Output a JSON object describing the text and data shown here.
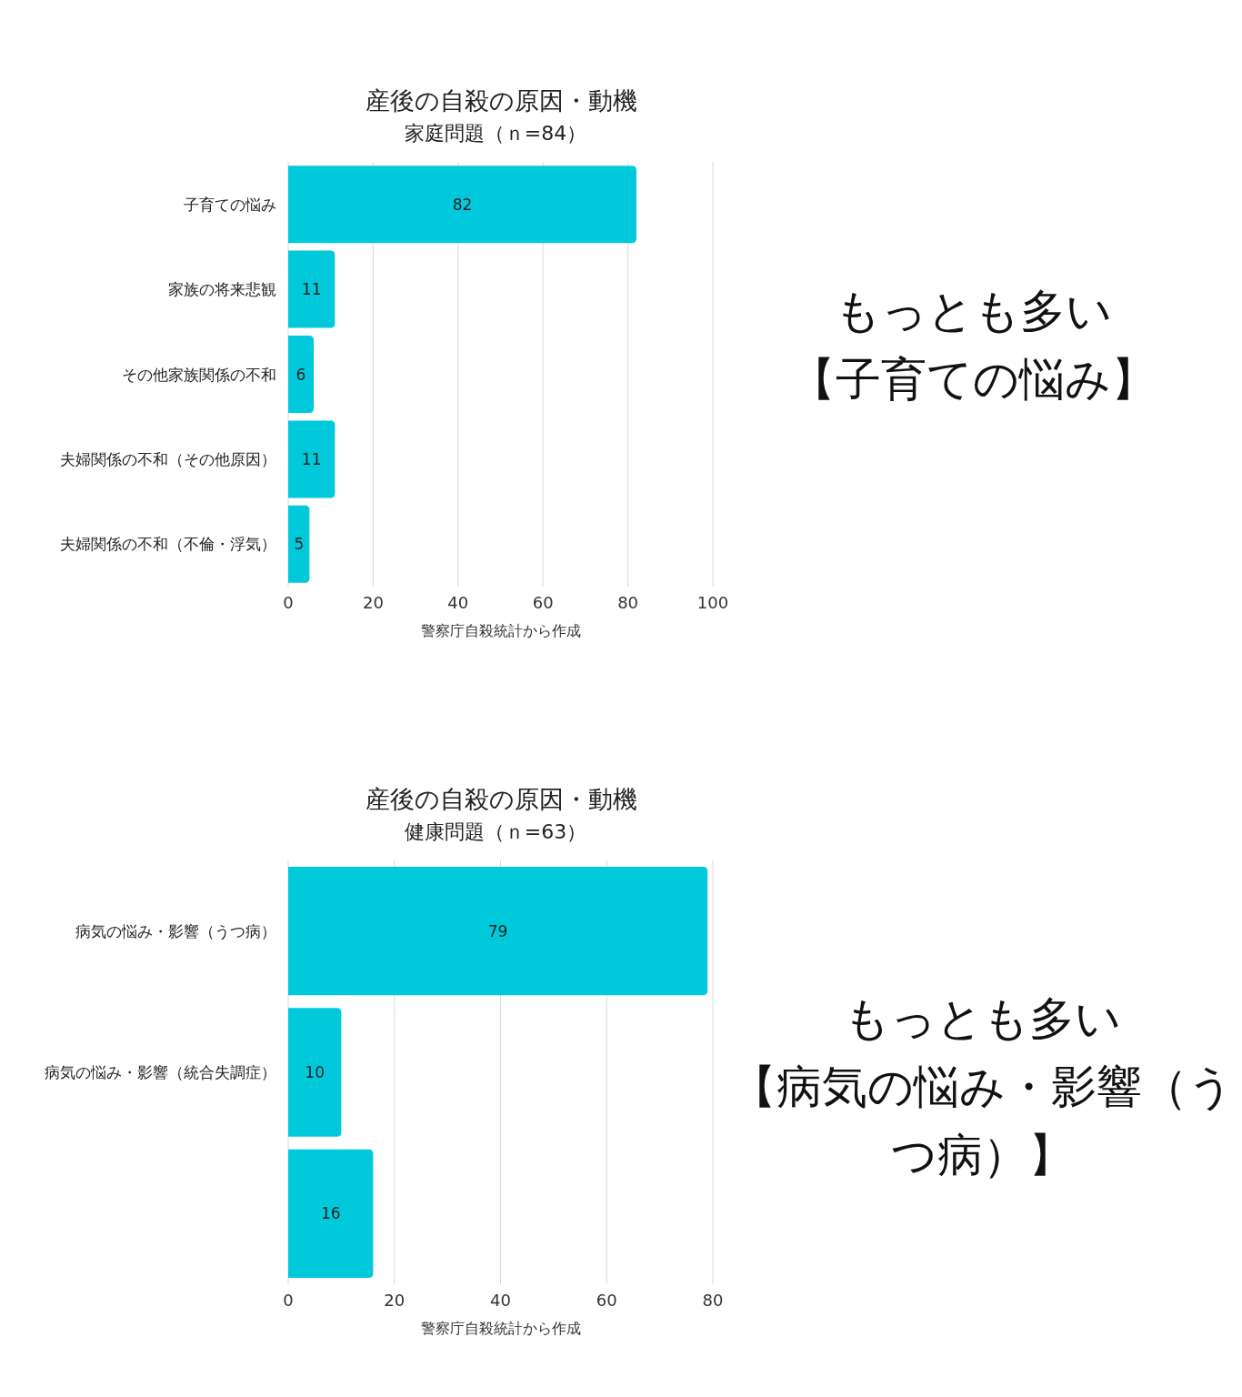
{
  "chart_data": [
    {
      "type": "bar",
      "orientation": "horizontal",
      "title": "産後の自殺の原因・動機",
      "subtitle": "家庭問題（ｎ=84）",
      "xlabel": "警察庁自殺統計から作成",
      "categories": [
        "子育ての悩み",
        "家族の将来悲観",
        "その他家族関係の不和",
        "夫婦関係の不和（その他原因）",
        "夫婦関係の不和（不倫・浮気）"
      ],
      "values": [
        82,
        11,
        6,
        11,
        5
      ],
      "color": "#00c9db",
      "xlim": [
        0,
        100
      ],
      "xticks": [
        0,
        20,
        40,
        60,
        80,
        100
      ],
      "grid": "x",
      "data_labels": true,
      "annotations": [
        "もっとも多い",
        "【子育ての悩み】"
      ]
    },
    {
      "type": "bar",
      "orientation": "horizontal",
      "title": "産後の自殺の原因・動機",
      "subtitle": "健康問題（ｎ=63）",
      "xlabel": "警察庁自殺統計から作成",
      "categories": [
        "病気の悩み・影響（うつ病）",
        "病気の悩み・影響（統合失調症）",
        null
      ],
      "values": [
        79,
        10,
        16
      ],
      "color": "#00c9db",
      "xlim": [
        0,
        80
      ],
      "xticks": [
        0,
        20,
        40,
        60,
        80
      ],
      "grid": "x",
      "data_labels": true,
      "annotations": [
        "もっとも多い",
        "【病気の悩み・影響（うつ病）】"
      ]
    }
  ]
}
